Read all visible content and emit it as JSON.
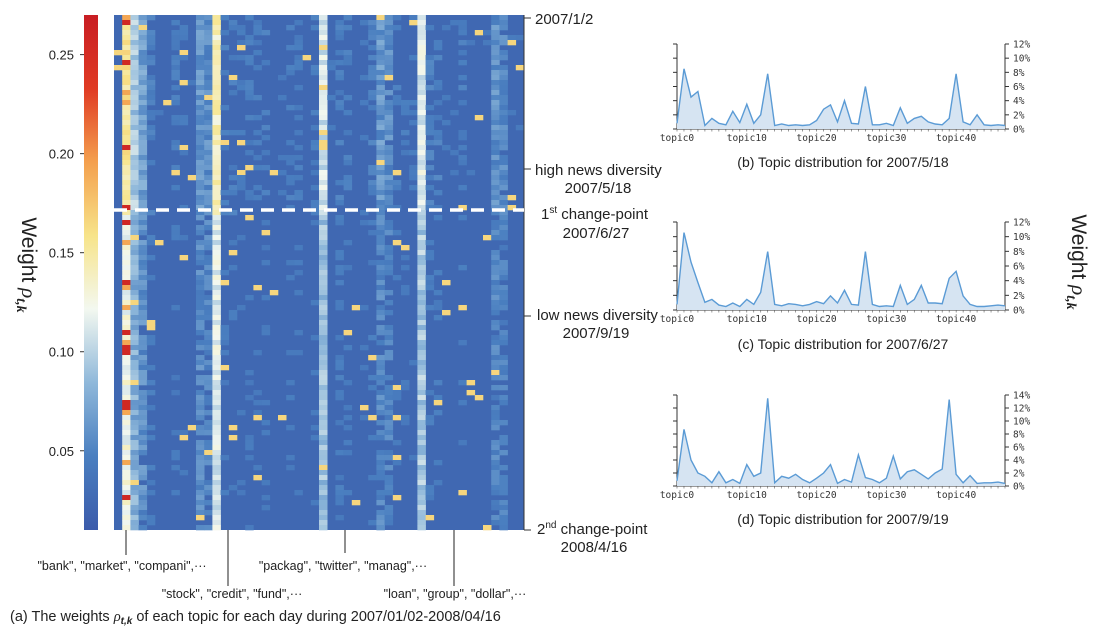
{
  "chart_data": [
    {
      "type": "heatmap",
      "caption_prefix": "(a) The weights ",
      "caption_symbol": "ρ",
      "caption_sub": "t,k",
      "caption_suffix": " of each topic for each day during 2007/01/02-2008/04/16",
      "colorbar_title": "Weight ",
      "colorbar_symbol": "ρ",
      "colorbar_sub": "t,k",
      "colorbar_ticks": [
        0.05,
        0.1,
        0.15,
        0.2,
        0.25
      ],
      "colorbar_range": [
        0.01,
        0.27
      ],
      "colormap": [
        "#3b5bab",
        "#4a7fc0",
        "#8fb8da",
        "#f3f8f0",
        "#f7e48a",
        "#f4a04e",
        "#e03b24",
        "#c81d23"
      ],
      "n_topics": 50,
      "date_labels": [
        {
          "text": "2007/1/2",
          "fraction": 0.0
        },
        {
          "line1": "high news diversity",
          "line2": "2007/5/18",
          "fraction": 0.3
        },
        {
          "line1_sup": "st",
          "line1_num": "1",
          "line1_rest": " change-point",
          "line2": "2007/6/27",
          "fraction": 0.382,
          "dashed": true
        },
        {
          "line1": "low news diversity",
          "line2": "2007/9/19",
          "fraction": 0.6
        },
        {
          "line1_sup": "nd",
          "line1_num": "2",
          "line1_rest": " change-point",
          "line2": "2008/4/16",
          "fraction": 1.0
        }
      ],
      "topic_annotations": [
        {
          "text": "\"bank\", \"market\", \"compani\",···",
          "topic": 1
        },
        {
          "text": "\"stock\", \"credit\", \"fund\",···",
          "topic": 12
        },
        {
          "text": "\"packag\", \"twitter\", \"manag\",···",
          "topic": 25
        },
        {
          "text": "\"loan\", \"group\", \"dollar\",···",
          "topic": 37
        }
      ]
    },
    {
      "type": "area",
      "caption": "(b) Topic distribution for 2007/5/18",
      "x_ticks": [
        "topic0",
        "topic10",
        "topic20",
        "topic30",
        "topic40"
      ],
      "y_ticks": [
        "0%",
        "2%",
        "4%",
        "6%",
        "8%",
        "10%",
        "12%"
      ],
      "ylim": [
        0,
        12
      ],
      "values": [
        0.8,
        8.5,
        4.5,
        5.3,
        0.5,
        1.5,
        0.8,
        0.6,
        2.5,
        0.9,
        3.5,
        0.8,
        2.0,
        7.8,
        0.5,
        0.7,
        0.5,
        0.6,
        0.5,
        0.6,
        1.2,
        2.8,
        3.4,
        1.0,
        4.0,
        0.8,
        0.7,
        6.0,
        0.6,
        0.6,
        0.8,
        0.5,
        3.0,
        0.8,
        1.5,
        1.8,
        1.0,
        0.7,
        0.6,
        1.5,
        7.8,
        1.0,
        0.6,
        2.0,
        0.6,
        0.5,
        0.6,
        0.5
      ]
    },
    {
      "type": "area",
      "caption": "(c) Topic distribution for 2007/6/27",
      "x_ticks": [
        "topic0",
        "topic10",
        "topic20",
        "topic30",
        "topic40"
      ],
      "y_ticks": [
        "0%",
        "2%",
        "4%",
        "6%",
        "8%",
        "10%",
        "12%"
      ],
      "ylim": [
        0,
        12.5
      ],
      "values": [
        0.8,
        11.0,
        6.8,
        3.9,
        1.1,
        1.5,
        0.7,
        0.5,
        1.0,
        0.5,
        1.5,
        0.8,
        2.5,
        8.3,
        0.8,
        0.6,
        0.9,
        0.8,
        0.6,
        0.8,
        1.2,
        0.9,
        2.0,
        1.0,
        2.8,
        0.8,
        0.7,
        8.3,
        0.8,
        0.5,
        0.6,
        0.5,
        3.5,
        0.8,
        1.5,
        3.5,
        1.0,
        1.0,
        0.9,
        4.5,
        5.5,
        2.0,
        0.8,
        0.5,
        0.5,
        0.6,
        0.7,
        0.6
      ]
    },
    {
      "type": "area",
      "caption": "(d) Topic distribution for 2007/9/19",
      "x_ticks": [
        "topic0",
        "topic10",
        "topic20",
        "topic30",
        "topic40"
      ],
      "y_ticks": [
        "0%",
        "2%",
        "4%",
        "6%",
        "8%",
        "10%",
        "12%",
        "14%"
      ],
      "ylim": [
        0,
        14
      ],
      "values": [
        0.8,
        8.7,
        4.0,
        2.0,
        1.5,
        0.5,
        2.2,
        0.5,
        1.0,
        0.4,
        3.3,
        1.5,
        2.0,
        13.5,
        0.5,
        1.5,
        1.2,
        1.8,
        1.0,
        0.5,
        1.2,
        2.0,
        3.3,
        0.4,
        1.0,
        0.6,
        4.8,
        1.3,
        1.0,
        0.5,
        1.2,
        4.6,
        1.1,
        2.2,
        2.5,
        1.8,
        1.1,
        2.0,
        2.6,
        13.3,
        1.8,
        0.5,
        1.6,
        0.4,
        0.5,
        0.5,
        0.6,
        0.4
      ]
    }
  ]
}
